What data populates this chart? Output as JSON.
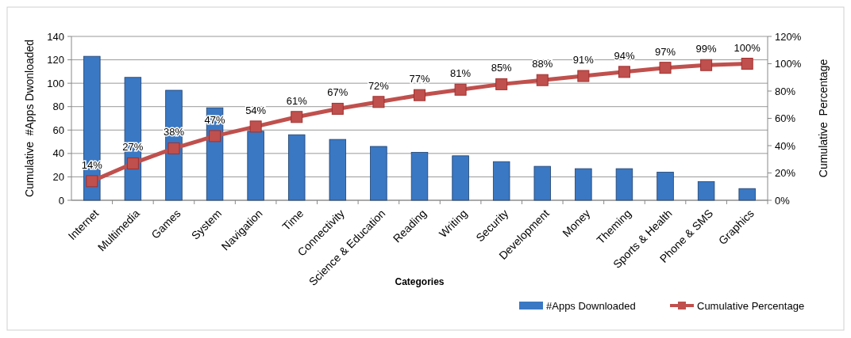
{
  "chart_data": {
    "type": "bar",
    "xlabel": "Categories",
    "ylabel": "Cumulative  #Apps Dwonloaded",
    "y2label": "Cumulative  Percentage",
    "categories": [
      "Internet",
      "Multimedia",
      "Games",
      "System",
      "Navigation",
      "Time",
      "Connectivity",
      "Science & Education",
      "Reading",
      "Writing",
      "Security",
      "Development",
      "Money",
      "Theming",
      "Sports & Health",
      "Phone & SMS",
      "Graphics"
    ],
    "series": [
      {
        "name": "#Apps Downloaded",
        "color": "#3a78c4",
        "values": [
          123,
          105,
          94,
          79,
          59,
          56,
          52,
          46,
          41,
          38,
          33,
          29,
          27,
          27,
          24,
          16,
          10
        ]
      },
      {
        "name": "Cumulative Percentage",
        "type": "line",
        "axis": "y2",
        "color": "#c0504d",
        "marker": "square",
        "values": [
          14,
          27,
          38,
          47,
          54,
          61,
          67,
          72,
          77,
          81,
          85,
          88,
          91,
          94,
          97,
          99,
          100
        ],
        "value_labels": [
          "14%",
          "27%",
          "38%",
          "47%",
          "54%",
          "61%",
          "67%",
          "72%",
          "77%",
          "81%",
          "85%",
          "88%",
          "91%",
          "94%",
          "97%",
          "99%",
          "100%"
        ]
      }
    ],
    "ylim": [
      0,
      140
    ],
    "yticks": [
      0,
      20,
      40,
      60,
      80,
      100,
      120,
      140
    ],
    "y2lim": [
      0,
      120
    ],
    "y2ticks": [
      {
        "value": 0,
        "label": "0%"
      },
      {
        "value": 20,
        "label": "20%"
      },
      {
        "value": 40,
        "label": "40%"
      },
      {
        "value": 60,
        "label": "60%"
      },
      {
        "value": 80,
        "label": "80%"
      },
      {
        "value": 100,
        "label": "100%"
      },
      {
        "value": 120,
        "label": "120%"
      }
    ],
    "grid": "y",
    "legend": "bottom right"
  }
}
